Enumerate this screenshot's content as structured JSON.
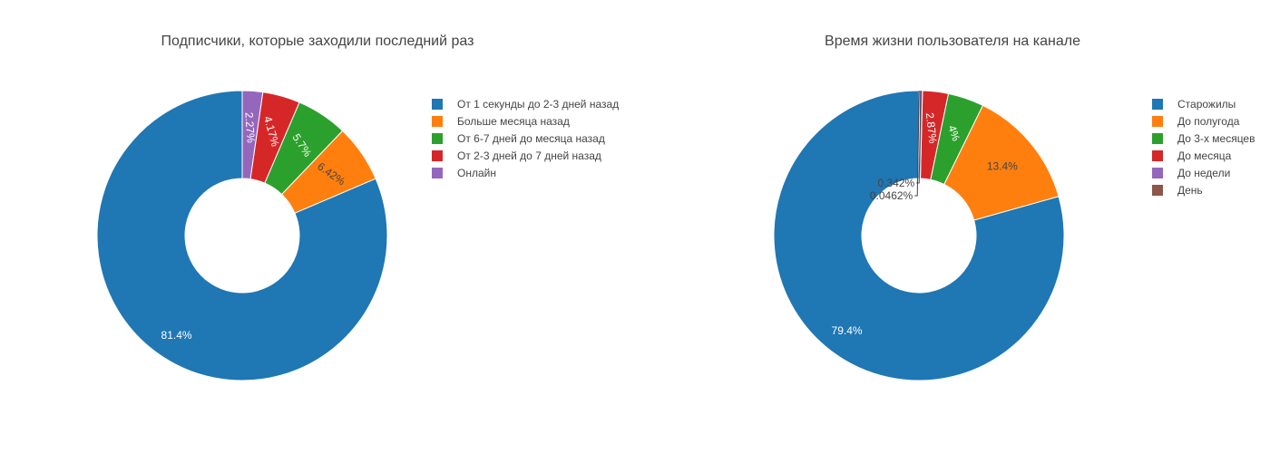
{
  "chart_data": [
    {
      "type": "pie",
      "hole": true,
      "title": "Подписчики, которые заходили последний раз",
      "legend_position": "right",
      "slices": [
        {
          "label": "От 1 секунды до 2-3 дней назад",
          "value": 81.4,
          "text": "81.4%",
          "color": "#1f77b4"
        },
        {
          "label": "Больше месяца назад",
          "value": 6.42,
          "text": "6.42%",
          "color": "#ff7f0e"
        },
        {
          "label": "От 6-7 дней до месяца назад",
          "value": 5.7,
          "text": "5.7%",
          "color": "#2ca02c"
        },
        {
          "label": "От 2-3 дней до 7 дней назад",
          "value": 4.17,
          "text": "4.17%",
          "color": "#d62728"
        },
        {
          "label": "Онлайн",
          "value": 2.27,
          "text": "2.27%",
          "color": "#9467bd"
        }
      ]
    },
    {
      "type": "pie",
      "hole": true,
      "title": "Время жизни пользователя на канале",
      "legend_position": "right",
      "slices": [
        {
          "label": "Старожилы",
          "value": 79.4,
          "text": "79.4%",
          "color": "#1f77b4"
        },
        {
          "label": "До полугода",
          "value": 13.4,
          "text": "13.4%",
          "color": "#ff7f0e"
        },
        {
          "label": "До 3-х месяцев",
          "value": 4,
          "text": "4%",
          "color": "#2ca02c"
        },
        {
          "label": "До месяца",
          "value": 2.87,
          "text": "2.87%",
          "color": "#d62728"
        },
        {
          "label": "До недели",
          "value": 0.342,
          "text": "0.342%",
          "color": "#9467bd"
        },
        {
          "label": "День",
          "value": 0.0462,
          "text": "0.0462%",
          "color": "#8c564b"
        }
      ]
    }
  ]
}
